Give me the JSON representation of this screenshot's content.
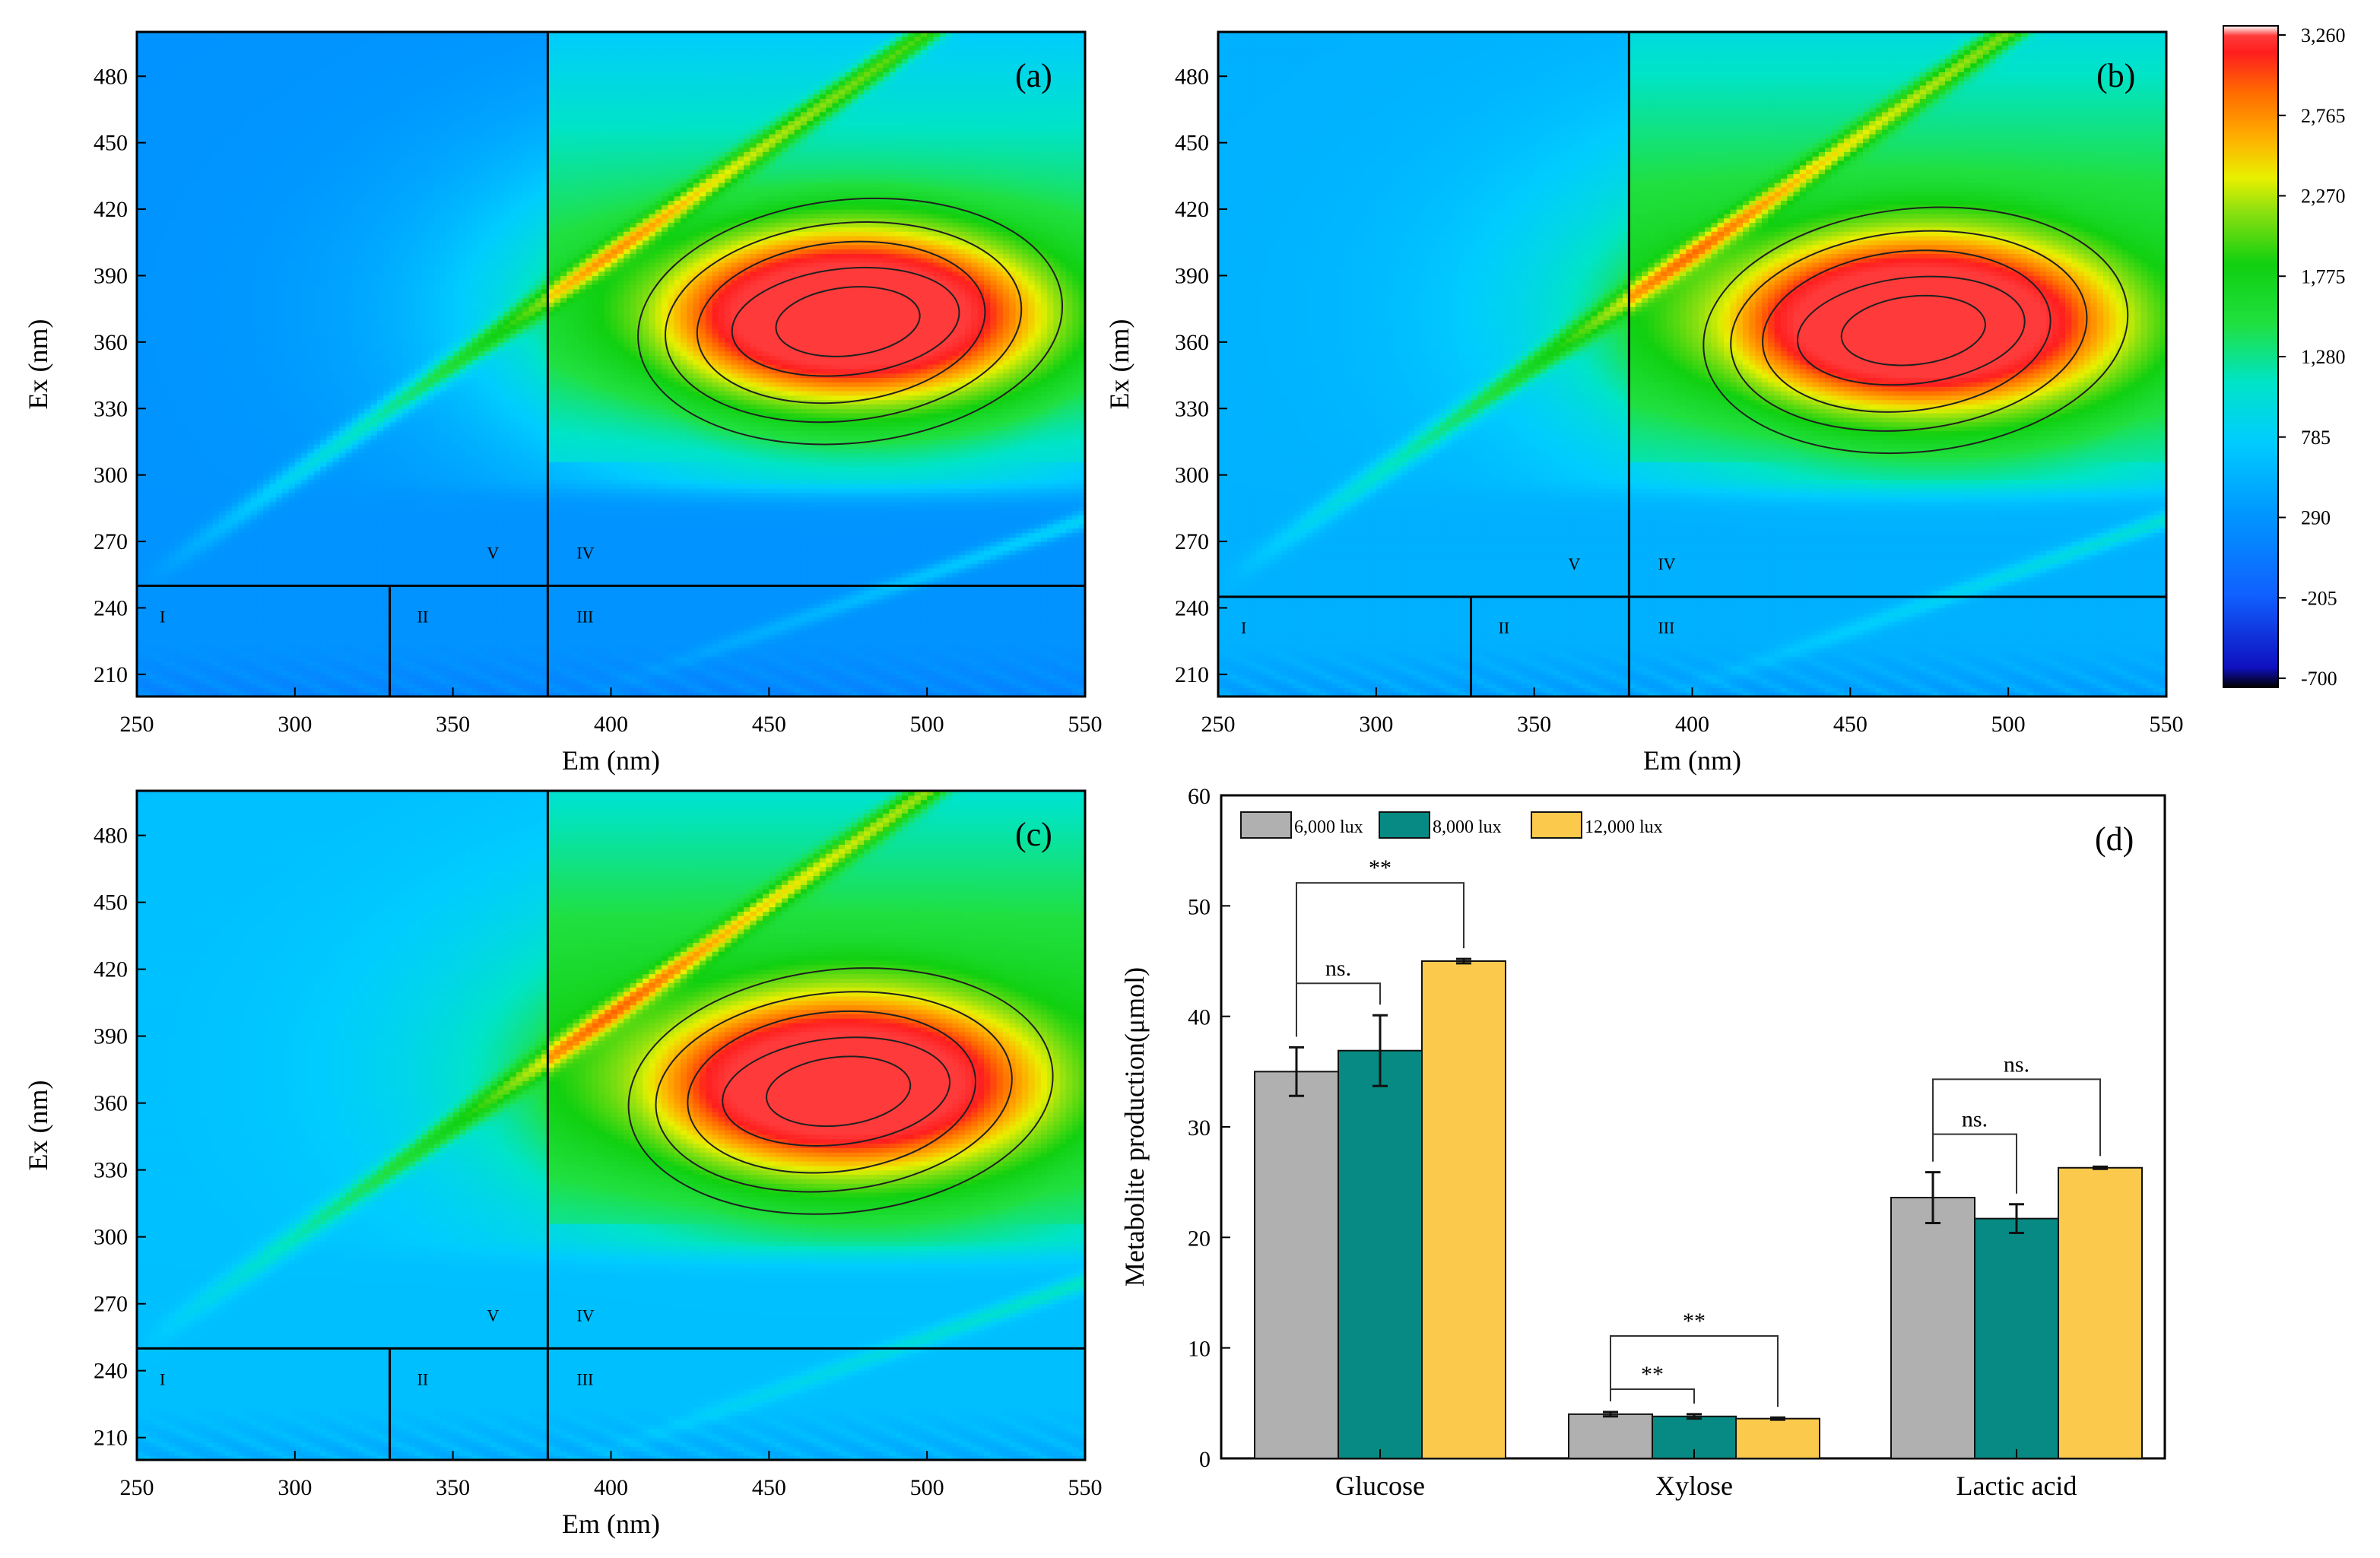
{
  "chart_data": [
    {
      "type": "heatmap",
      "panel_label": "(a)",
      "xlabel": "Em (nm)",
      "ylabel": "Ex (nm)",
      "xlim": [
        250,
        550
      ],
      "ylim": [
        200,
        500
      ],
      "xticks": [
        "250",
        "300",
        "350",
        "400",
        "450",
        "500",
        "550"
      ],
      "yticks": [
        "210",
        "240",
        "270",
        "300",
        "330",
        "360",
        "390",
        "420",
        "450",
        "480"
      ],
      "region_labels": [
        "I",
        "II",
        "III",
        "IV",
        "V"
      ],
      "region_boundaries": {
        "em_lines": [
          330,
          380
        ],
        "ex_line": 250
      },
      "peak": {
        "em": 475,
        "ex": 372,
        "intensity": 3000
      }
    },
    {
      "type": "heatmap",
      "panel_label": "(b)",
      "xlabel": "Em (nm)",
      "ylabel": "Ex (nm)",
      "xlim": [
        250,
        550
      ],
      "ylim": [
        200,
        500
      ],
      "xticks": [
        "250",
        "300",
        "350",
        "400",
        "450",
        "500",
        "550"
      ],
      "yticks": [
        "210",
        "240",
        "270",
        "300",
        "330",
        "360",
        "390",
        "420",
        "450",
        "480"
      ],
      "region_labels": [
        "I",
        "II",
        "III",
        "IV",
        "V"
      ],
      "region_boundaries": {
        "em_lines": [
          330,
          380
        ],
        "ex_line": 245
      },
      "peak": {
        "em": 470,
        "ex": 368,
        "intensity": 3100
      }
    },
    {
      "type": "heatmap",
      "panel_label": "(c)",
      "xlabel": "Em (nm)",
      "ylabel": "Ex (nm)",
      "xlim": [
        250,
        550
      ],
      "ylim": [
        200,
        500
      ],
      "xticks": [
        "250",
        "300",
        "350",
        "400",
        "450",
        "500",
        "550"
      ],
      "yticks": [
        "210",
        "240",
        "270",
        "300",
        "330",
        "360",
        "390",
        "420",
        "450",
        "480"
      ],
      "region_labels": [
        "I",
        "II",
        "III",
        "IV",
        "V"
      ],
      "region_boundaries": {
        "em_lines": [
          330,
          380
        ],
        "ex_line": 250
      },
      "peak": {
        "em": 472,
        "ex": 368,
        "intensity": 2900
      }
    },
    {
      "type": "bar",
      "panel_label": "(d)",
      "categories": [
        "Glucose",
        "Xylose",
        "Lactic acid"
      ],
      "series": [
        {
          "name": "6,000 lux",
          "color": "#b0b0b0",
          "values": [
            35.0,
            4.0,
            23.6
          ],
          "errors": [
            2.2,
            0.2,
            2.3
          ]
        },
        {
          "name": "8,000 lux",
          "color": "#078a83",
          "values": [
            36.9,
            3.8,
            21.7
          ],
          "errors": [
            3.2,
            0.2,
            1.3
          ]
        },
        {
          "name": "12,000 lux",
          "color": "#fbc94c",
          "values": [
            45.0,
            3.6,
            26.3
          ],
          "errors": [
            0.2,
            0.1,
            0.1
          ]
        }
      ],
      "xlabel": "",
      "ylabel": "Metabolite production(μmol)",
      "ylim": [
        0,
        60
      ],
      "yticks": [
        "0",
        "10",
        "20",
        "30",
        "40",
        "50",
        "60"
      ],
      "significance": [
        {
          "category": "Glucose",
          "compare": [
            "6,000 lux",
            "8,000 lux"
          ],
          "label": "ns."
        },
        {
          "category": "Glucose",
          "compare": [
            "6,000 lux",
            "12,000 lux"
          ],
          "label": "**"
        },
        {
          "category": "Xylose",
          "compare": [
            "6,000 lux",
            "8,000 lux"
          ],
          "label": "**"
        },
        {
          "category": "Xylose",
          "compare": [
            "6,000 lux",
            "12,000 lux"
          ],
          "label": "**"
        },
        {
          "category": "Lactic acid",
          "compare": [
            "6,000 lux",
            "8,000 lux"
          ],
          "label": "ns."
        },
        {
          "category": "Lactic acid",
          "compare": [
            "6,000 lux",
            "12,000 lux"
          ],
          "label": "ns."
        }
      ]
    }
  ],
  "colorbar": {
    "ticks": [
      "3,260",
      "2,765",
      "2,270",
      "1,775",
      "1,280",
      "785",
      "290",
      "-205",
      "-700"
    ],
    "min": -700,
    "max": 3260
  }
}
